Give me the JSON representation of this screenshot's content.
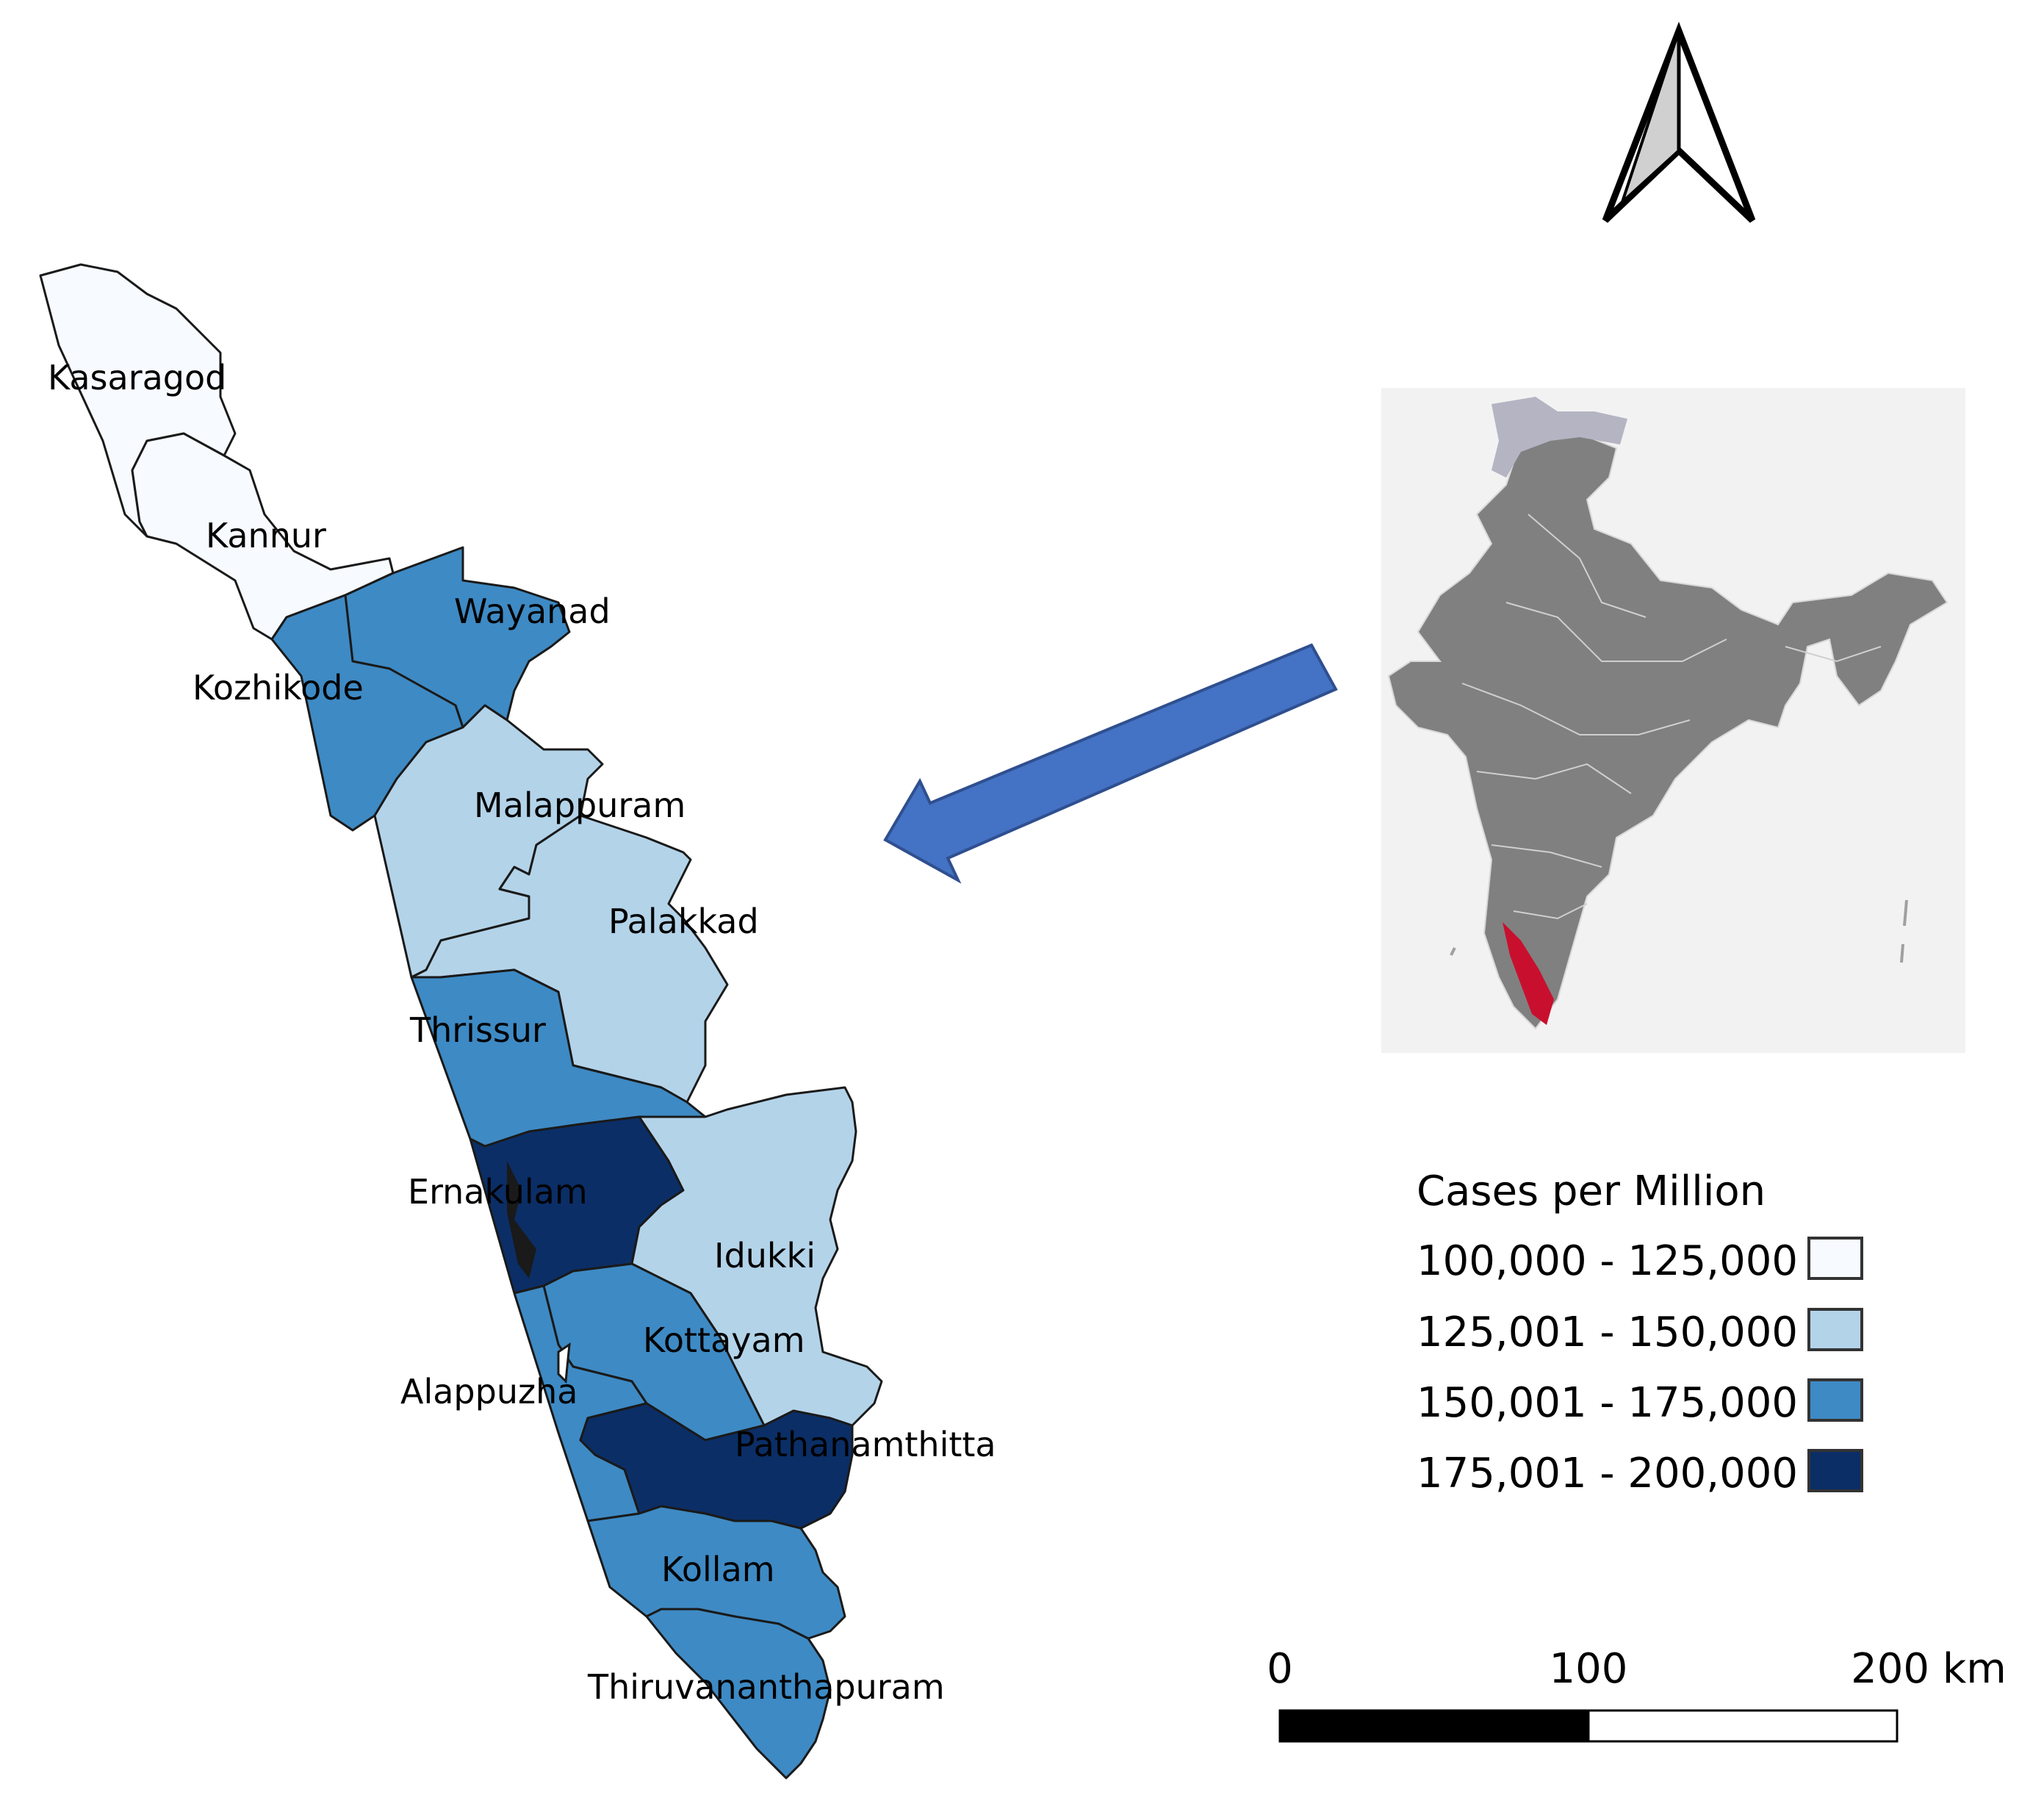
{
  "districts": [
    {
      "key": "kasaragod",
      "label": "Kasaragod",
      "color": "#f7fbff"
    },
    {
      "key": "kannur",
      "label": "Kannur",
      "color": "#f7fbff"
    },
    {
      "key": "wayanad",
      "label": "Wayanad",
      "color": "#3e8ac4"
    },
    {
      "key": "kozhikode",
      "label": "Kozhikode",
      "color": "#3e8ac4"
    },
    {
      "key": "malappuram",
      "label": "Malappuram",
      "color": "#b3d3e9"
    },
    {
      "key": "palakkad",
      "label": "Palakkad",
      "color": "#b3d3e9"
    },
    {
      "key": "thrissur",
      "label": "Thrissur",
      "color": "#3e8ac4"
    },
    {
      "key": "ernakulam",
      "label": "Ernakulam",
      "color": "#0b2e66"
    },
    {
      "key": "idukki",
      "label": "Idukki",
      "color": "#b3d3e9"
    },
    {
      "key": "kottayam",
      "label": "Kottayam",
      "color": "#3e8ac4"
    },
    {
      "key": "alappuzha",
      "label": "Alappuzha",
      "color": "#3e8ac4"
    },
    {
      "key": "pathanamthitta",
      "label": "Pathanamthitta",
      "color": "#0b2e66"
    },
    {
      "key": "kollam",
      "label": "Kollam",
      "color": "#3e8ac4"
    },
    {
      "key": "thiruvananthapuram",
      "label": "Thiruvananthapuram",
      "color": "#3e8ac4"
    }
  ],
  "legend": {
    "title": "Cases per Million",
    "classes": [
      {
        "label": "100,000 - 125,000",
        "color": "#f7fbff"
      },
      {
        "label": "125,001 - 150,000",
        "color": "#b3d3e9"
      },
      {
        "label": "150,001 - 175,000",
        "color": "#3e8ac4"
      },
      {
        "label": "175,001 - 200,000",
        "color": "#0b2e66"
      }
    ]
  },
  "scale_bar": {
    "labels": [
      "0",
      "100",
      "200 km"
    ]
  },
  "inset": {
    "highlight_color": "#c8102e",
    "land_color": "#808080",
    "disputed_color": "#b4b4c3"
  },
  "arrow_color": "#4472c4"
}
